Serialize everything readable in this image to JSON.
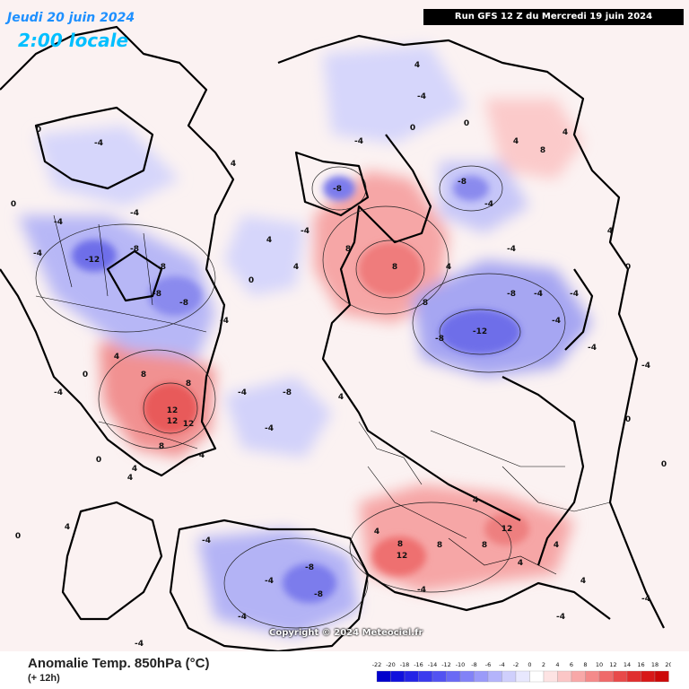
{
  "header": {
    "date_label": "Jeudi 20 juin 2024",
    "time_label": "2:00 locale",
    "run_label": "Run GFS 12 Z du Mercredi 19 juin 2024"
  },
  "footer": {
    "title": "Anomalie Temp. 850hPa (°C)",
    "subtitle": "(+ 12h)",
    "copyright": "Copyright © 2024 Meteociel.fr"
  },
  "legend": {
    "values": [
      "-22",
      "-20",
      "-18",
      "-16",
      "-14",
      "-12",
      "-10",
      "-8",
      "-6",
      "-4",
      "-2",
      "0",
      "2",
      "4",
      "6",
      "8",
      "10",
      "12",
      "14",
      "16",
      "18",
      "20"
    ],
    "colors": [
      "#0000cc",
      "#1010dd",
      "#2424e6",
      "#3a3aee",
      "#5252f2",
      "#6a6af5",
      "#8282f7",
      "#9a9af9",
      "#b4b4fb",
      "#cfcffc",
      "#e8e8fe",
      "#ffffff",
      "#fde3e3",
      "#fbc6c6",
      "#f8a8a8",
      "#f48a8a",
      "#ef6a6a",
      "#e84a4a",
      "#e02e2e",
      "#d81818",
      "#cc0808"
    ]
  },
  "map": {
    "palette": {
      "ocean": "#fbf2f2",
      "warm_weak": "#fbd6d6",
      "warm_mid": "#f6a6a6",
      "warm_strong": "#ee6f6f",
      "cold_weak": "#dcdcfb",
      "cold_mid": "#aeaef6",
      "cold_strong": "#7c7cec"
    },
    "contour_labels": [
      "0",
      "-4",
      "-4",
      "-4",
      "0",
      "4",
      "4",
      "0",
      "-4",
      "4",
      "-8",
      "-4",
      "0",
      "-4",
      "4",
      "0",
      "8",
      "8",
      "8",
      "4",
      "-8",
      "-4",
      "4",
      "8",
      "4",
      "-4",
      "-8",
      "-4",
      "-12",
      "-8",
      "-4",
      "-4",
      "-4",
      "-8",
      "-8",
      "-12",
      "-8",
      "-4",
      "-8",
      "-4",
      "4",
      "0",
      "-4",
      "8",
      "8",
      "12",
      "12",
      "12",
      "4",
      "8",
      "4",
      "0",
      "-4",
      "-8",
      "-4",
      "4",
      "12",
      "8",
      "4",
      "8",
      "12",
      "8",
      "4",
      "-4",
      "4",
      "4",
      "-4",
      "-8",
      "-8",
      "-4",
      "-4",
      "0",
      "4",
      "4",
      "-4",
      "-4",
      "-4",
      "4",
      "0",
      "0",
      "0",
      "-4",
      "4"
    ]
  }
}
